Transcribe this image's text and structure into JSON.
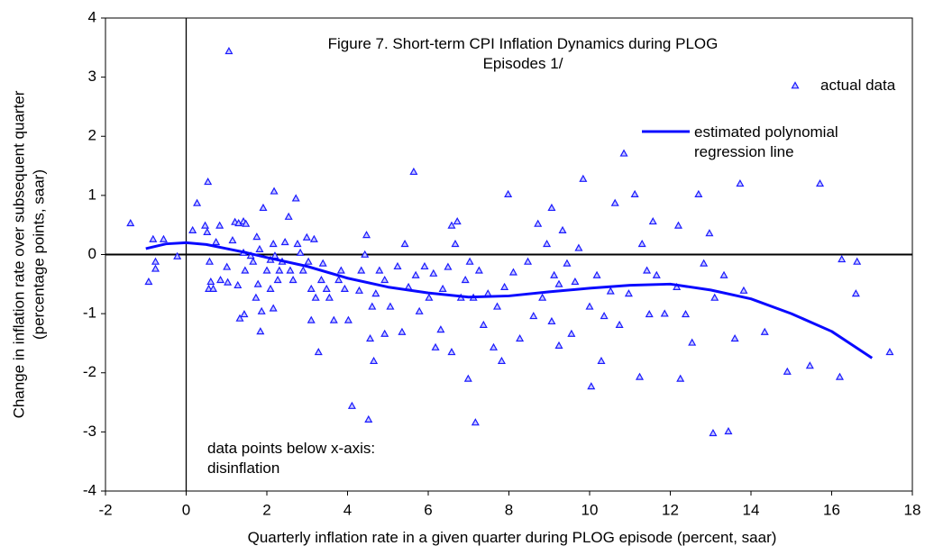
{
  "chart_data": {
    "type": "scatter",
    "title": "Figure 7. Short-term CPI Inflation Dynamics during PLOG Episodes 1/",
    "xlabel": "Quarterly inflation rate in a given quarter during PLOG episode (percent, saar)",
    "ylabel": [
      "Change in inflation rate over subsequent quarter",
      "(percentage points, saar)"
    ],
    "annotation": "data points below x-axis: disinflation",
    "xlim": [
      -2,
      18
    ],
    "xticks": [
      -2,
      0,
      2,
      4,
      6,
      8,
      10,
      12,
      14,
      16,
      18
    ],
    "ylim": [
      -4,
      4
    ],
    "yticks": [
      -4,
      -3,
      -2,
      -1,
      0,
      1,
      2,
      3,
      4
    ],
    "series": [
      {
        "name": "actual data",
        "type": "scatter",
        "color": "#1a1aff",
        "x": [
          -1.38,
          -0.82,
          -0.93,
          -0.76,
          -0.76,
          -0.56,
          -0.22,
          1.06,
          0.27,
          0.54,
          0.52,
          0.16,
          0.47,
          0.83,
          0.74,
          0.58,
          0.61,
          0.56,
          0.67,
          0.85,
          1.01,
          1.03,
          1.15,
          1.21,
          1.3,
          1.42,
          1.48,
          1.28,
          1.33,
          1.44,
          1.42,
          1.46,
          1.6,
          1.66,
          1.75,
          1.82,
          1.78,
          1.87,
          1.73,
          1.84,
          1.91,
          2.0,
          2.09,
          2.16,
          2.2,
          2.09,
          2.16,
          2.27,
          2.18,
          2.31,
          2.38,
          2.45,
          2.54,
          2.58,
          2.65,
          2.72,
          2.76,
          2.83,
          2.9,
          2.99,
          3.03,
          3.1,
          3.17,
          3.1,
          3.21,
          3.28,
          3.35,
          3.39,
          3.48,
          3.55,
          3.66,
          3.78,
          3.84,
          3.93,
          4.02,
          4.11,
          4.29,
          4.34,
          4.43,
          4.47,
          4.56,
          4.65,
          4.52,
          4.61,
          4.7,
          4.79,
          4.92,
          4.92,
          5.06,
          5.24,
          5.35,
          5.42,
          5.51,
          5.64,
          5.69,
          5.78,
          5.91,
          6.02,
          6.13,
          6.18,
          6.31,
          6.36,
          6.49,
          6.58,
          6.58,
          6.67,
          6.72,
          6.81,
          6.92,
          6.99,
          7.03,
          7.12,
          7.17,
          7.26,
          7.37,
          7.48,
          7.62,
          7.71,
          7.82,
          7.89,
          7.98,
          8.11,
          8.27,
          8.47,
          8.61,
          8.72,
          8.83,
          8.94,
          9.06,
          9.06,
          9.12,
          9.24,
          9.24,
          9.33,
          9.44,
          9.55,
          9.64,
          9.73,
          9.84,
          10.0,
          10.04,
          10.18,
          10.29,
          10.36,
          10.52,
          10.63,
          10.74,
          10.85,
          10.97,
          11.12,
          11.24,
          11.3,
          11.42,
          11.48,
          11.57,
          11.66,
          11.86,
          12.16,
          12.2,
          12.25,
          12.38,
          12.54,
          12.7,
          12.83,
          12.97,
          13.06,
          13.1,
          13.33,
          13.44,
          13.6,
          13.73,
          13.82,
          14.34,
          14.9,
          15.46,
          15.71,
          16.2,
          16.25,
          16.63,
          16.6,
          17.44
        ],
        "y": [
          0.53,
          0.26,
          -0.46,
          -0.12,
          -0.24,
          0.26,
          -0.03,
          3.44,
          0.87,
          1.23,
          0.38,
          0.41,
          0.49,
          0.49,
          0.21,
          -0.12,
          -0.46,
          -0.58,
          -0.58,
          -0.43,
          -0.21,
          -0.47,
          0.24,
          0.55,
          0.53,
          0.56,
          0.52,
          -0.52,
          -1.08,
          -1.01,
          0.03,
          -0.27,
          -0.02,
          -0.12,
          0.3,
          0.09,
          -0.5,
          -0.96,
          -0.73,
          -1.3,
          0.79,
          -0.27,
          -0.09,
          0.18,
          -0.02,
          -0.58,
          -0.91,
          -0.43,
          1.07,
          -0.27,
          -0.12,
          0.21,
          0.64,
          -0.27,
          -0.43,
          0.95,
          0.18,
          0.03,
          -0.27,
          0.29,
          -0.12,
          -0.58,
          0.26,
          -1.11,
          -0.73,
          -1.65,
          -0.43,
          -0.15,
          -0.58,
          -0.73,
          -1.11,
          -0.43,
          -0.27,
          -0.58,
          -1.11,
          -2.56,
          -0.61,
          -0.27,
          0.0,
          0.33,
          -1.42,
          -1.8,
          -2.79,
          -0.88,
          -0.66,
          -0.27,
          -1.34,
          -0.43,
          -0.88,
          -0.2,
          -1.31,
          0.18,
          -0.55,
          1.4,
          -0.35,
          -0.96,
          -0.2,
          -0.73,
          -0.32,
          -1.57,
          -1.27,
          -0.58,
          -0.21,
          -1.65,
          0.49,
          0.18,
          0.56,
          -0.73,
          -0.43,
          -2.1,
          -0.12,
          -0.73,
          -2.84,
          -0.27,
          -1.19,
          -0.66,
          -1.57,
          -0.88,
          -1.8,
          -0.55,
          1.02,
          -0.3,
          -1.42,
          -0.12,
          -1.04,
          0.52,
          -0.73,
          0.18,
          0.79,
          -1.13,
          -0.35,
          -0.5,
          -1.54,
          0.41,
          -0.15,
          -1.34,
          -0.46,
          0.11,
          1.28,
          -0.88,
          -2.23,
          -0.35,
          -1.8,
          -1.04,
          -0.62,
          0.87,
          -1.19,
          1.71,
          -0.66,
          1.02,
          -2.07,
          0.18,
          -0.27,
          -1.01,
          0.56,
          -0.35,
          -1.0,
          -0.55,
          0.49,
          -2.1,
          -1.01,
          -1.49,
          1.02,
          -0.15,
          0.36,
          -3.02,
          -0.73,
          -0.35,
          -2.99,
          -1.42,
          1.2,
          -0.61,
          -1.31,
          -1.98,
          -1.88,
          1.2,
          -2.07,
          -0.08,
          -0.12,
          -0.66,
          -1.65
        ]
      },
      {
        "name": "estimated polynomial regression line",
        "type": "line",
        "color": "#0a0aff",
        "x": [
          -1,
          -0.5,
          0,
          0.5,
          1,
          1.5,
          2,
          3,
          4,
          5,
          6,
          7,
          8,
          9,
          10,
          11,
          12,
          13,
          14,
          15,
          16,
          17
        ],
        "y": [
          0.1,
          0.18,
          0.2,
          0.17,
          0.1,
          0.03,
          -0.05,
          -0.2,
          -0.4,
          -0.55,
          -0.65,
          -0.72,
          -0.7,
          -0.63,
          -0.57,
          -0.52,
          -0.5,
          -0.6,
          -0.75,
          -1.0,
          -1.3,
          -1.75
        ]
      }
    ]
  }
}
